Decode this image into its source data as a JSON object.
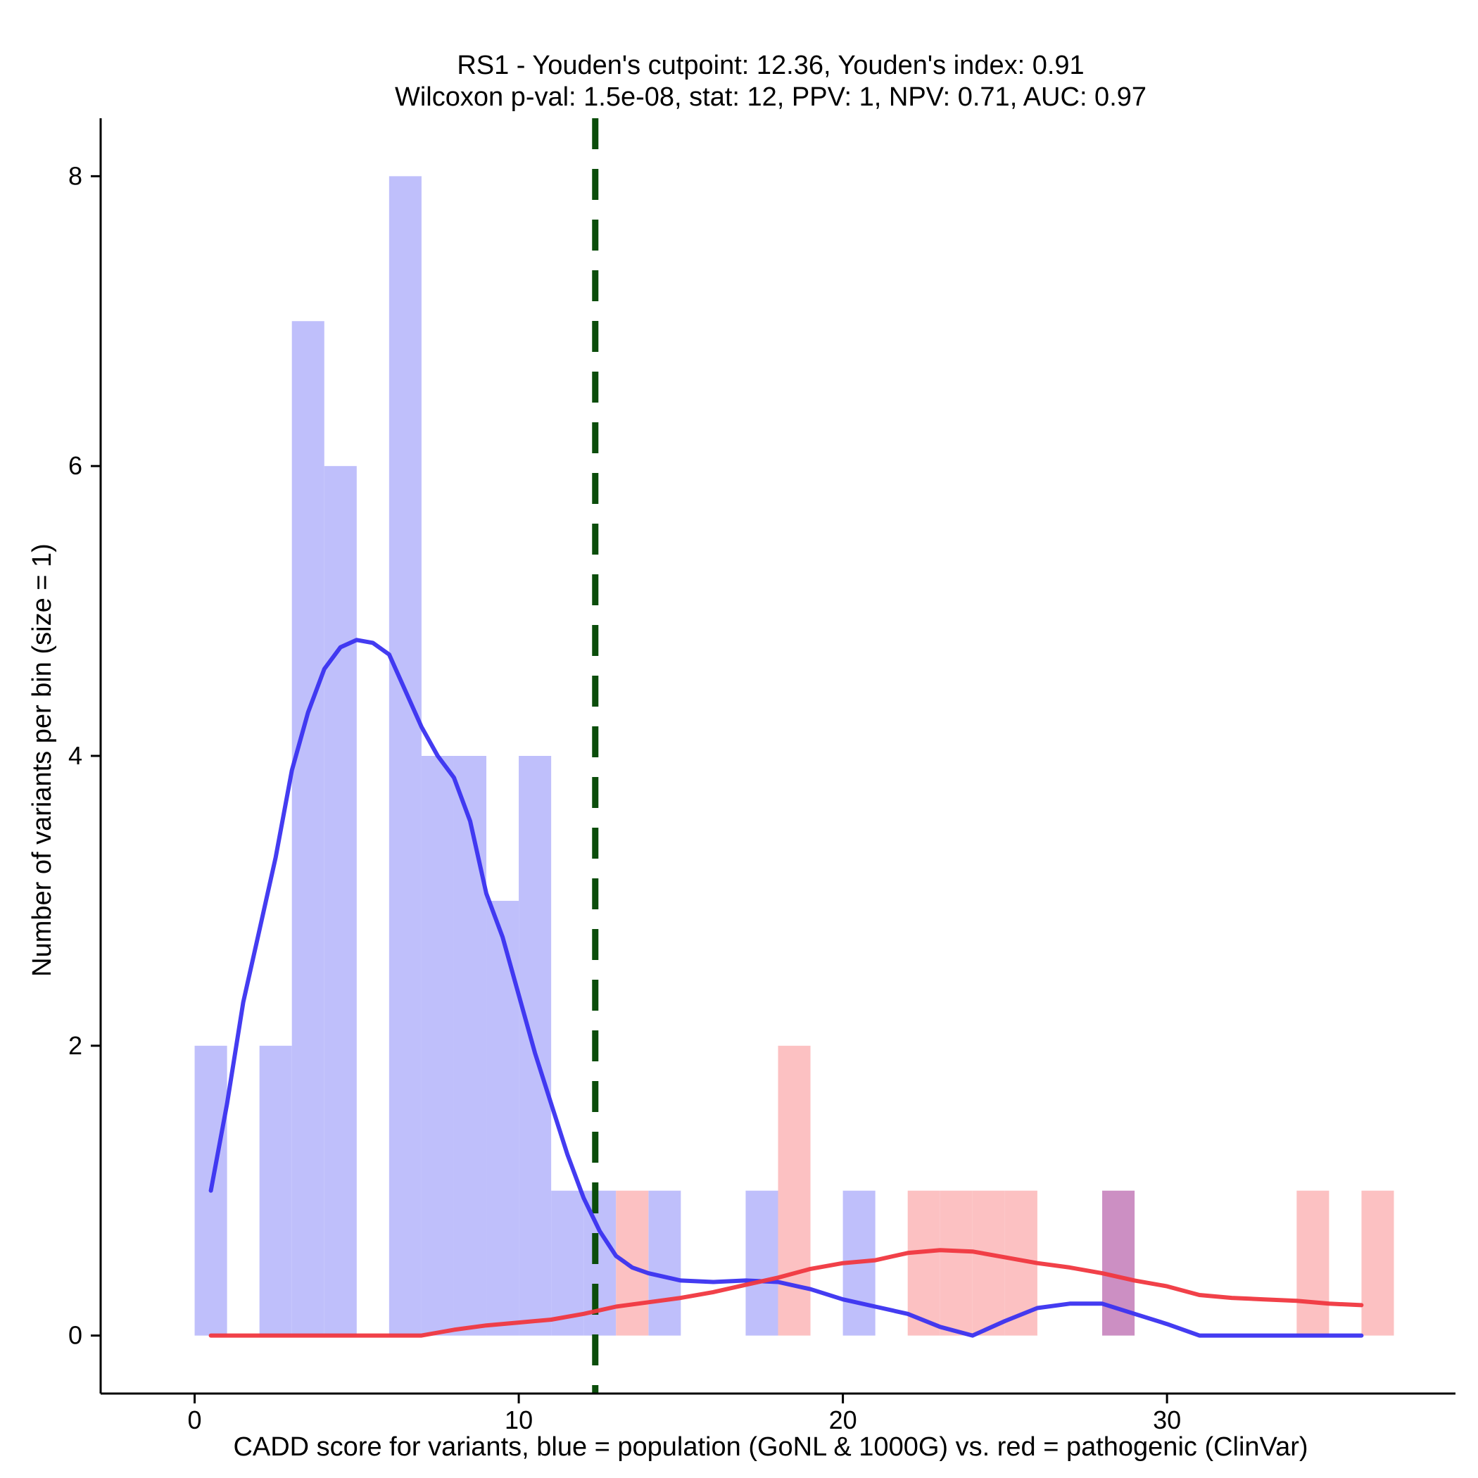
{
  "chart_data": {
    "type": "histogram",
    "title": "RS1 - Youden's cutpoint: 12.36, Youden's index: 0.91",
    "subtitle": "Wilcoxon p-val: 1.5e-08, stat: 12, PPV: 1, NPV: 0.71, AUC: 0.97",
    "xlabel": "CADD score for variants, blue = population (GoNL & 1000G) vs. red = pathogenic (ClinVar)",
    "ylabel": "Number of variants per bin (size = 1)",
    "xlim": [
      -2.9,
      38.9
    ],
    "ylim": [
      -0.4,
      8.4
    ],
    "x_ticks": [
      0,
      10,
      20,
      30
    ],
    "y_ticks": [
      0,
      2,
      4,
      6,
      8
    ],
    "bin_size": 1,
    "colors": {
      "population_bar": "#bfbffb",
      "pathogenic_bar": "#fcc1c2",
      "overlap_bar": "#cc8fc3",
      "population_line": "#3a32f0",
      "pathogenic_line": "#f0373f",
      "cutpoint_line": "#0b4d0b",
      "axis": "#000000"
    },
    "cutpoint": 12.36,
    "series": [
      {
        "name": "population (GoNL & 1000G)",
        "bins": [
          {
            "start": 0,
            "count": 2
          },
          {
            "start": 2,
            "count": 2
          },
          {
            "start": 3,
            "count": 7
          },
          {
            "start": 4,
            "count": 6
          },
          {
            "start": 6,
            "count": 8
          },
          {
            "start": 7,
            "count": 4
          },
          {
            "start": 8,
            "count": 4
          },
          {
            "start": 9,
            "count": 3
          },
          {
            "start": 10,
            "count": 4
          },
          {
            "start": 11,
            "count": 1
          },
          {
            "start": 12,
            "count": 1
          },
          {
            "start": 14,
            "count": 1
          },
          {
            "start": 17,
            "count": 1
          },
          {
            "start": 20,
            "count": 1
          },
          {
            "start": 28,
            "count": 1
          }
        ],
        "density": [
          [
            0.5,
            1.0
          ],
          [
            1.0,
            1.6
          ],
          [
            1.5,
            2.3
          ],
          [
            2.0,
            2.8
          ],
          [
            2.5,
            3.3
          ],
          [
            3.0,
            3.9
          ],
          [
            3.5,
            4.3
          ],
          [
            4.0,
            4.6
          ],
          [
            4.5,
            4.75
          ],
          [
            5.0,
            4.8
          ],
          [
            5.5,
            4.78
          ],
          [
            6.0,
            4.7
          ],
          [
            6.5,
            4.45
          ],
          [
            7.0,
            4.2
          ],
          [
            7.5,
            4.0
          ],
          [
            8.0,
            3.85
          ],
          [
            8.5,
            3.55
          ],
          [
            9.0,
            3.05
          ],
          [
            9.5,
            2.75
          ],
          [
            10.0,
            2.35
          ],
          [
            10.5,
            1.95
          ],
          [
            11.0,
            1.6
          ],
          [
            11.5,
            1.25
          ],
          [
            12.0,
            0.95
          ],
          [
            12.5,
            0.72
          ],
          [
            13.0,
            0.55
          ],
          [
            13.5,
            0.47
          ],
          [
            14.0,
            0.43
          ],
          [
            15.0,
            0.38
          ],
          [
            16.0,
            0.37
          ],
          [
            17.0,
            0.38
          ],
          [
            18.0,
            0.37
          ],
          [
            19.0,
            0.32
          ],
          [
            20.0,
            0.25
          ],
          [
            21.0,
            0.2
          ],
          [
            22.0,
            0.15
          ],
          [
            23.0,
            0.06
          ],
          [
            24.0,
            0.0
          ],
          [
            25.0,
            0.1
          ],
          [
            26.0,
            0.19
          ],
          [
            27.0,
            0.22
          ],
          [
            28.0,
            0.22
          ],
          [
            29.0,
            0.15
          ],
          [
            30.0,
            0.08
          ],
          [
            31.0,
            0.0
          ],
          [
            32.0,
            0.0
          ],
          [
            34.0,
            0.0
          ],
          [
            36.0,
            0.0
          ]
        ]
      },
      {
        "name": "pathogenic (ClinVar)",
        "bins": [
          {
            "start": 13,
            "count": 1
          },
          {
            "start": 18,
            "count": 2
          },
          {
            "start": 22,
            "count": 1
          },
          {
            "start": 23,
            "count": 1
          },
          {
            "start": 24,
            "count": 1
          },
          {
            "start": 25,
            "count": 1
          },
          {
            "start": 28,
            "count": 1
          },
          {
            "start": 34,
            "count": 1
          },
          {
            "start": 36,
            "count": 1
          }
        ],
        "density": [
          [
            0.5,
            0.0
          ],
          [
            3.0,
            0.0
          ],
          [
            5.0,
            0.0
          ],
          [
            7.0,
            0.0
          ],
          [
            8.0,
            0.04
          ],
          [
            9.0,
            0.07
          ],
          [
            10.0,
            0.09
          ],
          [
            11.0,
            0.11
          ],
          [
            12.0,
            0.15
          ],
          [
            13.0,
            0.2
          ],
          [
            14.0,
            0.23
          ],
          [
            15.0,
            0.26
          ],
          [
            16.0,
            0.3
          ],
          [
            17.0,
            0.35
          ],
          [
            18.0,
            0.4
          ],
          [
            19.0,
            0.46
          ],
          [
            20.0,
            0.5
          ],
          [
            21.0,
            0.52
          ],
          [
            22.0,
            0.57
          ],
          [
            23.0,
            0.59
          ],
          [
            24.0,
            0.58
          ],
          [
            25.0,
            0.54
          ],
          [
            26.0,
            0.5
          ],
          [
            27.0,
            0.47
          ],
          [
            28.0,
            0.43
          ],
          [
            29.0,
            0.38
          ],
          [
            30.0,
            0.34
          ],
          [
            31.0,
            0.28
          ],
          [
            32.0,
            0.26
          ],
          [
            33.0,
            0.25
          ],
          [
            34.0,
            0.24
          ],
          [
            35.0,
            0.22
          ],
          [
            36.0,
            0.21
          ]
        ]
      }
    ]
  }
}
